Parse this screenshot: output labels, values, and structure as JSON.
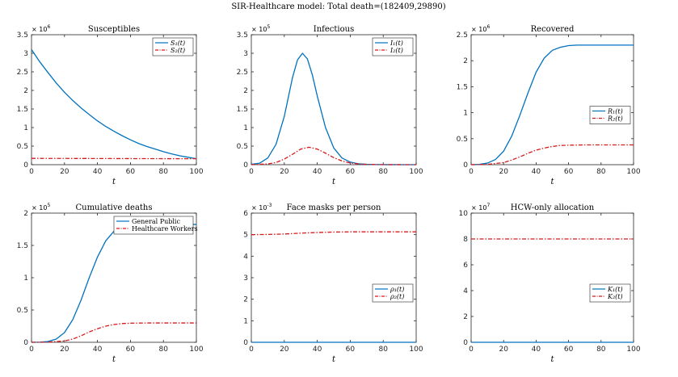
{
  "figure_title": "SIR-Healthcare model: Total death=(182409,29890)",
  "colors": {
    "series1": "#0072BD",
    "series2": "#D7191C",
    "axis": "#262626"
  },
  "chart_data": [
    {
      "type": "line",
      "title": "Susceptibles",
      "xlabel": "t",
      "ylabel": "",
      "xlim": [
        0,
        100
      ],
      "ylim": [
        0,
        3.5
      ],
      "y_exponent": "6",
      "xticks": [
        0,
        20,
        40,
        60,
        80,
        100
      ],
      "yticks": [
        0,
        0.5,
        1,
        1.5,
        2,
        2.5,
        3,
        3.5
      ],
      "legend_placement": "top-right",
      "grid": false,
      "series": [
        {
          "name": "S₁(t)",
          "style": "solid",
          "x": [
            0,
            5,
            10,
            15,
            20,
            25,
            30,
            35,
            40,
            45,
            50,
            55,
            60,
            65,
            70,
            75,
            80,
            85,
            90,
            95,
            100
          ],
          "values": [
            3.1,
            2.77,
            2.48,
            2.2,
            1.95,
            1.73,
            1.53,
            1.35,
            1.18,
            1.03,
            0.9,
            0.78,
            0.67,
            0.57,
            0.49,
            0.42,
            0.35,
            0.29,
            0.24,
            0.2,
            0.16
          ]
        },
        {
          "name": "S₂(t)",
          "style": "dashdot",
          "x": [
            0,
            100
          ],
          "values": [
            0.17,
            0.16
          ]
        }
      ]
    },
    {
      "type": "line",
      "title": "Infectious",
      "xlabel": "t",
      "ylabel": "",
      "xlim": [
        0,
        100
      ],
      "ylim": [
        0,
        3.5
      ],
      "y_exponent": "5",
      "xticks": [
        0,
        20,
        40,
        60,
        80,
        100
      ],
      "yticks": [
        0,
        0.5,
        1,
        1.5,
        2,
        2.5,
        3,
        3.5
      ],
      "legend_placement": "top-right",
      "grid": false,
      "series": [
        {
          "name": "I₁(t)",
          "style": "solid",
          "x": [
            0,
            5,
            10,
            15,
            20,
            25,
            28,
            31,
            34,
            37,
            40,
            45,
            50,
            55,
            60,
            65,
            70,
            75,
            80,
            90,
            100
          ],
          "values": [
            0.01,
            0.04,
            0.18,
            0.55,
            1.3,
            2.35,
            2.82,
            3.0,
            2.85,
            2.42,
            1.85,
            1.0,
            0.45,
            0.18,
            0.07,
            0.025,
            0.01,
            0.003,
            0.001,
            0,
            0
          ]
        },
        {
          "name": "I₂(t)",
          "style": "dashdot",
          "x": [
            0,
            10,
            15,
            20,
            25,
            30,
            35,
            40,
            45,
            50,
            55,
            60,
            65,
            70,
            80,
            100
          ],
          "values": [
            0,
            0.02,
            0.06,
            0.15,
            0.28,
            0.42,
            0.47,
            0.42,
            0.31,
            0.19,
            0.1,
            0.045,
            0.02,
            0.008,
            0.002,
            0
          ]
        }
      ]
    },
    {
      "type": "line",
      "title": "Recovered",
      "xlabel": "t",
      "ylabel": "",
      "xlim": [
        0,
        100
      ],
      "ylim": [
        0,
        2.5
      ],
      "y_exponent": "6",
      "xticks": [
        0,
        20,
        40,
        60,
        80,
        100
      ],
      "yticks": [
        0,
        0.5,
        1,
        1.5,
        2,
        2.5
      ],
      "legend_placement": "right",
      "grid": false,
      "series": [
        {
          "name": "R₁(t)",
          "style": "solid",
          "x": [
            0,
            5,
            10,
            15,
            20,
            25,
            30,
            35,
            40,
            45,
            50,
            55,
            60,
            65,
            70,
            80,
            90,
            100
          ],
          "values": [
            0,
            0.005,
            0.03,
            0.1,
            0.26,
            0.55,
            0.95,
            1.38,
            1.78,
            2.05,
            2.2,
            2.26,
            2.29,
            2.3,
            2.3,
            2.3,
            2.3,
            2.3
          ]
        },
        {
          "name": "R₂(t)",
          "style": "dashdot",
          "x": [
            0,
            10,
            20,
            25,
            30,
            35,
            40,
            45,
            50,
            55,
            60,
            70,
            80,
            90,
            100
          ],
          "values": [
            0,
            0.005,
            0.04,
            0.09,
            0.15,
            0.22,
            0.28,
            0.32,
            0.35,
            0.37,
            0.375,
            0.38,
            0.38,
            0.38,
            0.38
          ]
        }
      ]
    },
    {
      "type": "line",
      "title": "Cumulative deaths",
      "xlabel": "t",
      "ylabel": "",
      "xlim": [
        0,
        100
      ],
      "ylim": [
        0,
        2
      ],
      "y_exponent": "5",
      "xticks": [
        0,
        20,
        40,
        60,
        80,
        100
      ],
      "yticks": [
        0,
        0.5,
        1,
        1.5,
        2
      ],
      "legend_placement": "top-right",
      "grid": false,
      "series": [
        {
          "name": "General Public",
          "style": "solid",
          "x": [
            0,
            5,
            10,
            15,
            20,
            25,
            30,
            35,
            40,
            45,
            50,
            55,
            60,
            65,
            70,
            80,
            90,
            100
          ],
          "values": [
            0,
            0.002,
            0.012,
            0.05,
            0.15,
            0.35,
            0.65,
            1.0,
            1.32,
            1.57,
            1.72,
            1.79,
            1.815,
            1.822,
            1.824,
            1.824,
            1.824,
            1.824
          ]
        },
        {
          "name": "Healthcare Workers",
          "style": "dashdot",
          "x": [
            0,
            10,
            20,
            25,
            30,
            35,
            40,
            45,
            50,
            55,
            60,
            70,
            80,
            90,
            100
          ],
          "values": [
            0,
            0.002,
            0.02,
            0.05,
            0.1,
            0.16,
            0.21,
            0.25,
            0.275,
            0.29,
            0.296,
            0.299,
            0.299,
            0.299,
            0.299
          ]
        }
      ]
    },
    {
      "type": "line",
      "title": "Face masks per person",
      "xlabel": "t",
      "ylabel": "",
      "xlim": [
        0,
        100
      ],
      "ylim": [
        0,
        6
      ],
      "y_exponent": "-3",
      "xticks": [
        0,
        20,
        40,
        60,
        80,
        100
      ],
      "yticks": [
        0,
        1,
        2,
        3,
        4,
        5,
        6
      ],
      "legend_placement": "right",
      "grid": false,
      "series": [
        {
          "name": "ρ₁(t)",
          "style": "solid",
          "x": [
            0,
            100
          ],
          "values": [
            0,
            0
          ]
        },
        {
          "name": "ρ₂(t)",
          "style": "dashdot",
          "x": [
            0,
            10,
            20,
            30,
            40,
            50,
            60,
            80,
            100
          ],
          "values": [
            5.0,
            5.01,
            5.03,
            5.07,
            5.1,
            5.12,
            5.13,
            5.13,
            5.13
          ]
        }
      ]
    },
    {
      "type": "line",
      "title": "HCW-only allocation",
      "xlabel": "t",
      "ylabel": "",
      "xlim": [
        0,
        100
      ],
      "ylim": [
        0,
        10
      ],
      "y_exponent": "7",
      "xticks": [
        0,
        20,
        40,
        60,
        80,
        100
      ],
      "yticks": [
        0,
        2,
        4,
        6,
        8,
        10
      ],
      "legend_placement": "right",
      "grid": false,
      "series": [
        {
          "name": "K₁(t)",
          "style": "solid",
          "x": [
            0,
            100
          ],
          "values": [
            0,
            0
          ]
        },
        {
          "name": "K₂(t)",
          "style": "dashdot",
          "x": [
            0,
            100
          ],
          "values": [
            8,
            8
          ]
        }
      ]
    }
  ]
}
